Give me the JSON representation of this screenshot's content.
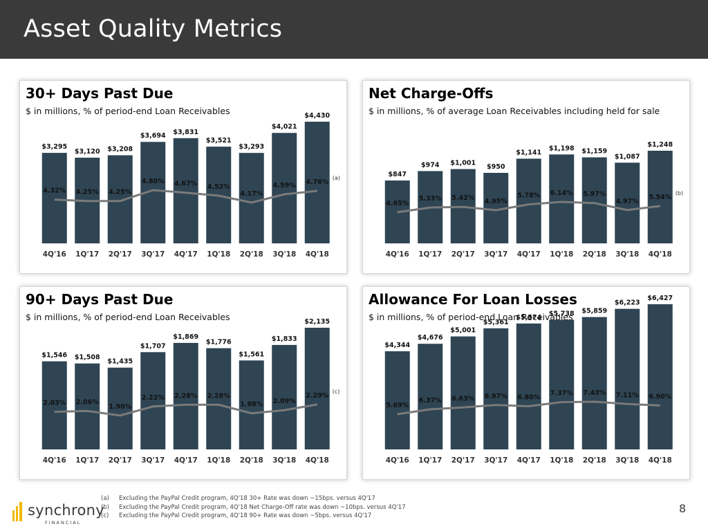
{
  "page": {
    "title": "Asset Quality Metrics",
    "page_number": "8",
    "brand": "synchrony",
    "brand_sub": "FINANCIAL",
    "footnotes": [
      {
        "key": "(a)",
        "text": "Excluding the PayPal Credit program, 4Q'18 30+ Rate was down ~15bps. versus 4Q'17"
      },
      {
        "key": "(b)",
        "text": "Excluding the PayPal Credit program, 4Q'18 Net Charge-Off rate was down ~10bps. versus 4Q'17"
      },
      {
        "key": "(c)",
        "text": "Excluding the PayPal Credit program, 4Q'18 90+ Rate was down ~5bps. versus 4Q'17"
      }
    ]
  },
  "chart_data": [
    {
      "type": "bar",
      "title": "30+ Days Past Due",
      "subtitle": "$ in millions, % of period-end Loan Receivables",
      "categories": [
        "4Q'16",
        "1Q'17",
        "2Q'17",
        "3Q'17",
        "4Q'17",
        "1Q'18",
        "2Q'18",
        "3Q'18",
        "4Q'18"
      ],
      "series": [
        {
          "name": "Balance ($M)",
          "values": [
            3295,
            3120,
            3208,
            3694,
            3831,
            3521,
            3293,
            4021,
            4430
          ],
          "labels": [
            "$3,295",
            "$3,120",
            "$3,208",
            "$3,694",
            "$3,831",
            "$3,521",
            "$3,293",
            "$4,021",
            "$4,430"
          ]
        },
        {
          "name": "Rate (%)",
          "type": "line",
          "values": [
            4.32,
            4.25,
            4.25,
            4.8,
            4.67,
            4.52,
            4.17,
            4.59,
            4.76
          ],
          "labels": [
            "4.32%",
            "4.25%",
            "4.25%",
            "4.80%",
            "4.67%",
            "4.52%",
            "4.17%",
            "4.59%",
            "4.76%"
          ]
        }
      ],
      "annotation": "(a)"
    },
    {
      "type": "bar",
      "title": "Net Charge-Offs",
      "subtitle": "$ in millions, % of average Loan Receivables including held for sale",
      "categories": [
        "4Q'16",
        "1Q'17",
        "2Q'17",
        "3Q'17",
        "4Q'17",
        "1Q'18",
        "2Q'18",
        "3Q'18",
        "4Q'18"
      ],
      "series": [
        {
          "name": "Net Charge-Offs ($M)",
          "values": [
            847,
            974,
            1001,
            950,
            1141,
            1198,
            1159,
            1087,
            1248
          ],
          "labels": [
            "$847",
            "$974",
            "$1,001",
            "$950",
            "$1,141",
            "$1,198",
            "$1,159",
            "$1,087",
            "$1,248"
          ]
        },
        {
          "name": "Rate (%)",
          "type": "line",
          "values": [
            4.65,
            5.33,
            5.42,
            4.95,
            5.78,
            6.14,
            5.97,
            4.97,
            5.54
          ],
          "labels": [
            "4.65%",
            "5.33%",
            "5.42%",
            "4.95%",
            "5.78%",
            "6.14%",
            "5.97%",
            "4.97%",
            "5.54%"
          ]
        }
      ],
      "annotation": "(b)"
    },
    {
      "type": "bar",
      "title": "90+ Days Past Due",
      "subtitle": "$ in millions, % of period-end Loan Receivables",
      "categories": [
        "4Q'16",
        "1Q'17",
        "2Q'17",
        "3Q'17",
        "4Q'17",
        "1Q'18",
        "2Q'18",
        "3Q'18",
        "4Q'18"
      ],
      "series": [
        {
          "name": "Balance ($M)",
          "values": [
            1546,
            1508,
            1435,
            1707,
            1869,
            1776,
            1561,
            1833,
            2135
          ],
          "labels": [
            "$1,546",
            "$1,508",
            "$1,435",
            "$1,707",
            "$1,869",
            "$1,776",
            "$1,561",
            "$1,833",
            "$2,135"
          ]
        },
        {
          "name": "Rate (%)",
          "type": "line",
          "values": [
            2.03,
            2.06,
            1.9,
            2.22,
            2.28,
            2.28,
            1.98,
            2.09,
            2.29
          ],
          "labels": [
            "2.03%",
            "2.06%",
            "1.90%",
            "2.22%",
            "2.28%",
            "2.28%",
            "1.98%",
            "2.09%",
            "2.29%"
          ]
        }
      ],
      "annotation": "(c)"
    },
    {
      "type": "bar",
      "title": "Allowance For Loan Losses",
      "subtitle": "$ in millions, % of period-end Loan Receivables",
      "categories": [
        "4Q'16",
        "1Q'17",
        "2Q'17",
        "3Q'17",
        "4Q'17",
        "1Q'18",
        "2Q'18",
        "3Q'18",
        "4Q'18"
      ],
      "series": [
        {
          "name": "Allowance ($M)",
          "values": [
            4344,
            4676,
            5001,
            5361,
            5574,
            5738,
            5859,
            6223,
            6427
          ],
          "labels": [
            "$4,344",
            "$4,676",
            "$5,001",
            "$5,361",
            "$5,574",
            "$5,738",
            "$5,859",
            "$6,223",
            "$6,427"
          ]
        },
        {
          "name": "Rate (%)",
          "type": "line",
          "values": [
            5.69,
            6.37,
            6.63,
            6.97,
            6.8,
            7.37,
            7.43,
            7.11,
            6.9
          ],
          "labels": [
            "5.69%",
            "6.37%",
            "6.63%",
            "6.97%",
            "6.80%",
            "7.37%",
            "7.43%",
            "7.11%",
            "6.90%"
          ]
        }
      ],
      "annotation": ""
    }
  ]
}
